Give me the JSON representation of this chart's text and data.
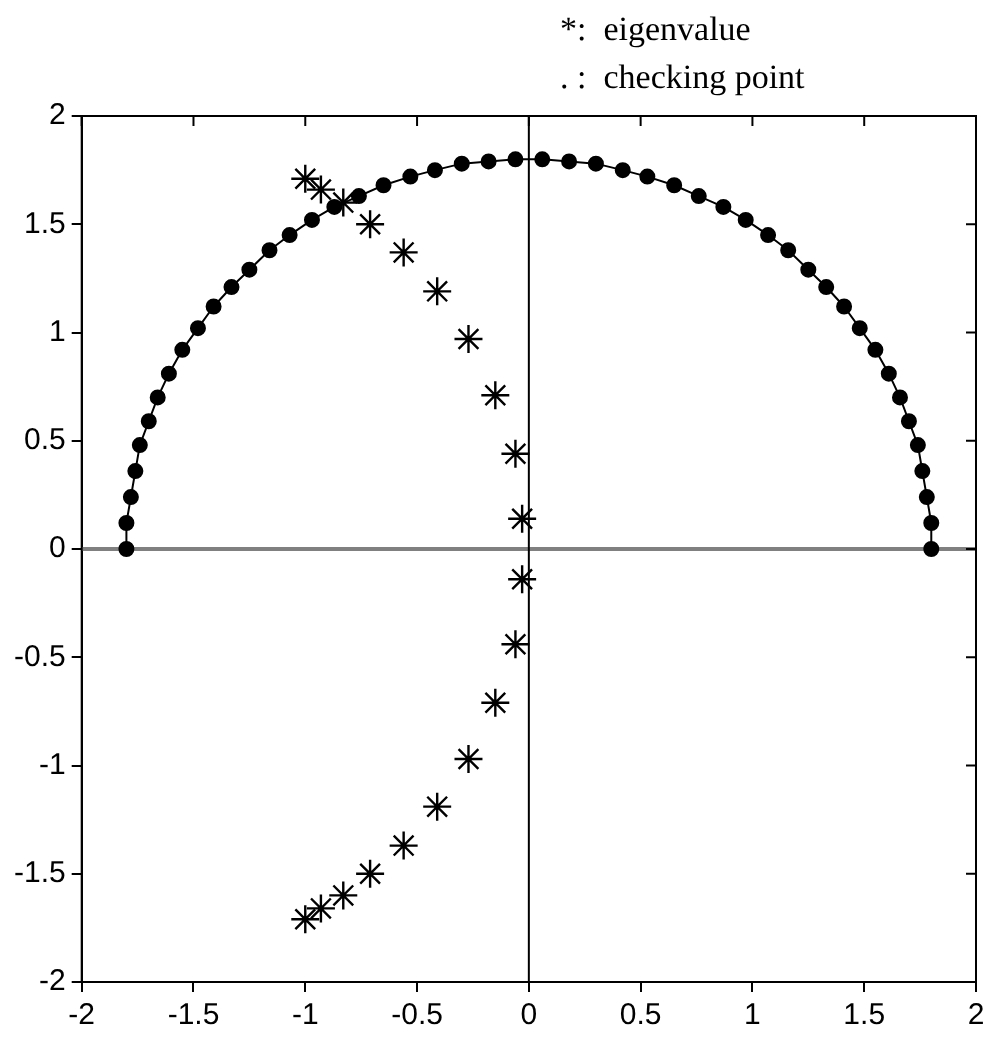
{
  "chart_data": {
    "type": "scatter",
    "annotations": [
      "*:  eigenvalue",
      ". :  checking point"
    ],
    "xlim": [
      -2,
      2
    ],
    "ylim": [
      -2,
      2
    ],
    "xticks": [
      -2,
      -1.5,
      -1,
      -0.5,
      0,
      0.5,
      1,
      1.5,
      2
    ],
    "yticks": [
      -2,
      -1.5,
      -1,
      -0.5,
      0,
      0.5,
      1,
      1.5,
      2
    ],
    "grid": false,
    "legend": false,
    "ref_lines": [
      {
        "axis": "y",
        "value": 0,
        "color": "#808080"
      },
      {
        "axis": "x",
        "value": 0,
        "color": "#000000"
      }
    ],
    "series": [
      {
        "type": "line",
        "color": "#000000",
        "marker": "circle",
        "line_style": "solid",
        "x": [
          1.8,
          1.8,
          1.78,
          1.76,
          1.74,
          1.7,
          1.66,
          1.61,
          1.55,
          1.48,
          1.41,
          1.33,
          1.25,
          1.16,
          1.07,
          0.97,
          0.87,
          0.76,
          0.65,
          0.53,
          0.42,
          0.3,
          0.18,
          0.06,
          -0.06,
          -0.18,
          -0.3,
          -0.42,
          -0.53,
          -0.65,
          -0.76,
          -0.87,
          -0.97,
          -1.07,
          -1.16,
          -1.25,
          -1.33,
          -1.41,
          -1.48,
          -1.55,
          -1.61,
          -1.66,
          -1.7,
          -1.74,
          -1.76,
          -1.78,
          -1.8,
          -1.8
        ],
        "values": [
          0,
          0.12,
          0.24,
          0.36,
          0.48,
          0.59,
          0.7,
          0.81,
          0.92,
          1.02,
          1.12,
          1.21,
          1.29,
          1.38,
          1.45,
          1.52,
          1.58,
          1.63,
          1.68,
          1.72,
          1.75,
          1.78,
          1.79,
          1.8,
          1.8,
          1.79,
          1.78,
          1.75,
          1.72,
          1.68,
          1.63,
          1.58,
          1.52,
          1.45,
          1.38,
          1.29,
          1.21,
          1.12,
          1.02,
          0.92,
          0.81,
          0.7,
          0.59,
          0.48,
          0.36,
          0.24,
          0.12,
          0
        ]
      },
      {
        "type": "scatter",
        "color": "#000000",
        "marker": "cross",
        "x": [
          -1.0,
          -0.93,
          -0.83,
          -0.71,
          -0.56,
          -0.41,
          -0.27,
          -0.15,
          -0.06,
          -0.03,
          -0.03,
          -0.06,
          -0.15,
          -0.27,
          -0.41,
          -0.56,
          -0.71,
          -0.83,
          -0.93,
          -1.0
        ],
        "values": [
          1.71,
          1.66,
          1.6,
          1.5,
          1.37,
          1.19,
          0.97,
          0.71,
          0.44,
          0.14,
          -0.14,
          -0.44,
          -0.71,
          -0.97,
          -1.19,
          -1.37,
          -1.5,
          -1.6,
          -1.66,
          -1.71
        ]
      }
    ]
  }
}
